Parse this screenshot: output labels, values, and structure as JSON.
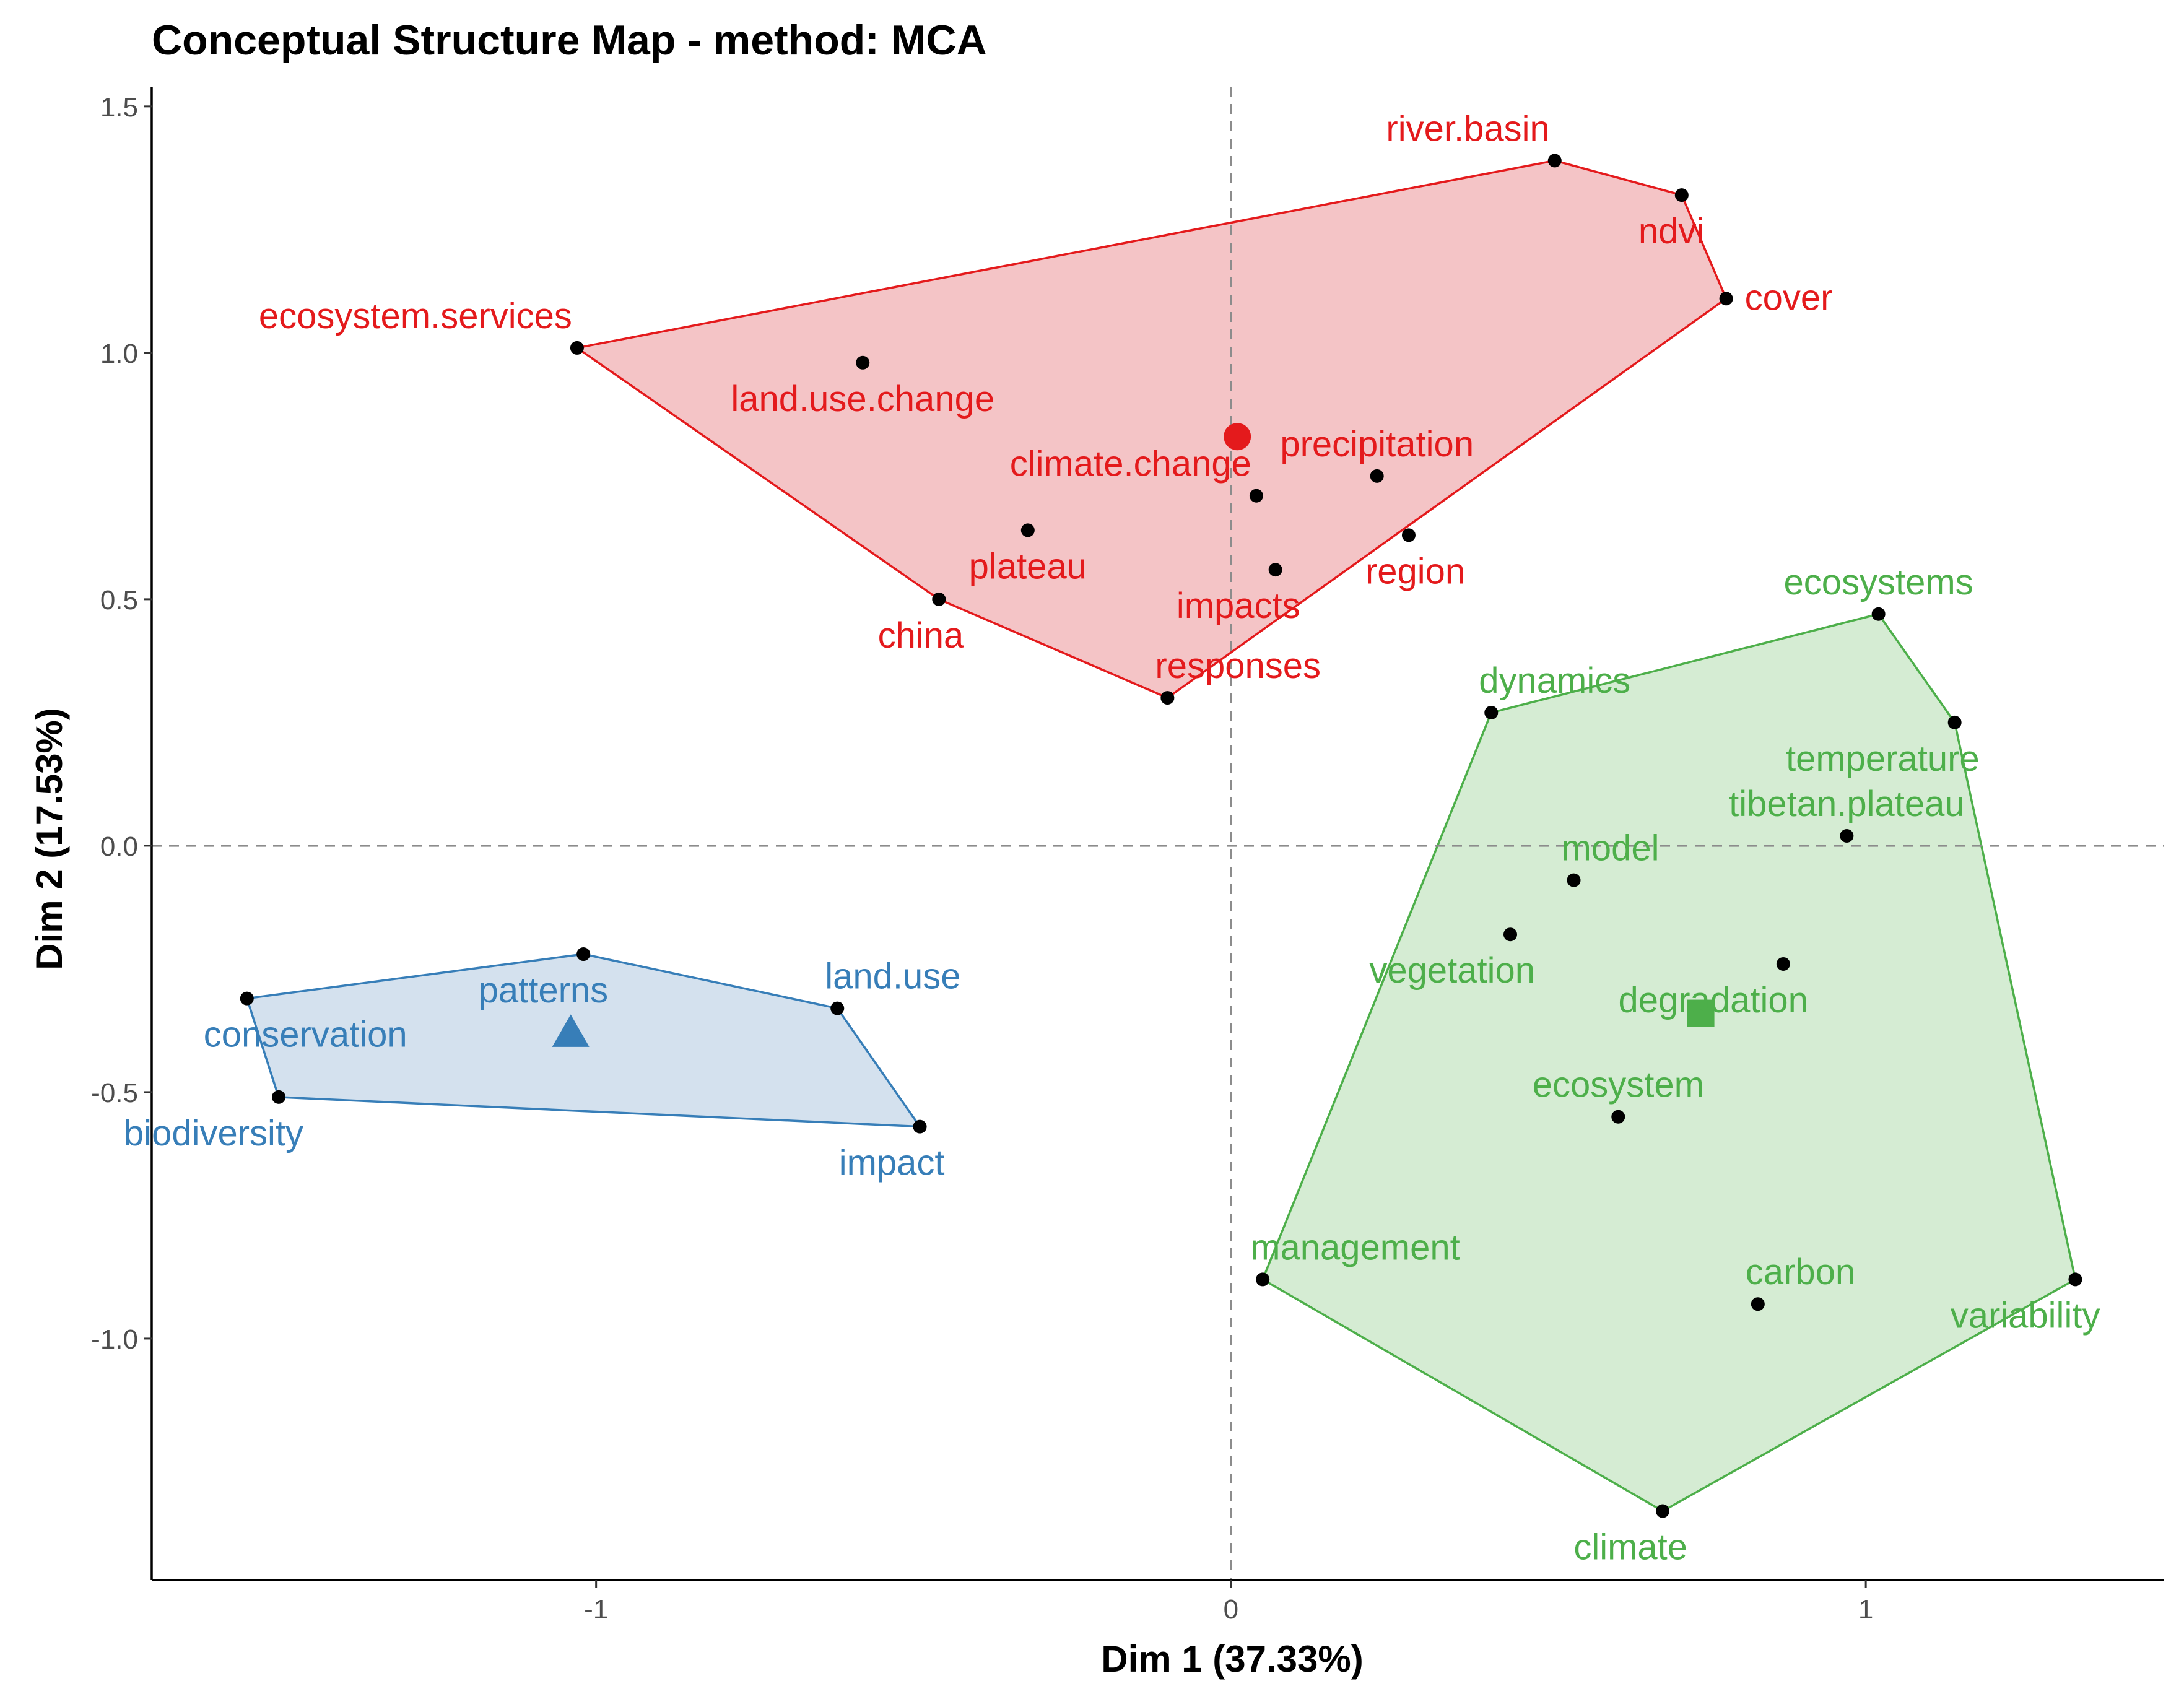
{
  "chart_data": {
    "type": "scatter",
    "title": "Conceptual Structure Map - method: MCA",
    "xlabel": "Dim 1 (37.33%)",
    "ylabel": "Dim 2 (17.53%)",
    "xlim": [
      -1.7,
      1.47
    ],
    "ylim": [
      -1.49,
      1.54
    ],
    "x_ticks": [
      {
        "value": -1,
        "label": "-1"
      },
      {
        "value": 0,
        "label": "0"
      },
      {
        "value": 1,
        "label": "1"
      }
    ],
    "y_ticks": [
      {
        "value": 1.5,
        "label": "1.5"
      },
      {
        "value": 1.0,
        "label": "1.0"
      },
      {
        "value": 0.5,
        "label": "0.5"
      },
      {
        "value": 0.0,
        "label": "0.0"
      },
      {
        "value": -0.5,
        "label": "-0.5"
      },
      {
        "value": -1.0,
        "label": "-1.0"
      }
    ],
    "reference_lines": {
      "x": 0,
      "y": 0,
      "style": "dashed"
    },
    "grid": false,
    "clusters": [
      {
        "name": "cluster-1",
        "color": "#e41a1c",
        "fill": "#f4c4c6",
        "centroid": {
          "x": 0.01,
          "y": 0.83,
          "marker": "circle"
        },
        "hull": [
          "river.basin",
          "ndvi",
          "cover",
          "responses",
          "china",
          "ecosystem.services"
        ],
        "points": [
          {
            "label": "ecosystem.services",
            "x": -1.03,
            "y": 1.01,
            "label_pos": "above-left"
          },
          {
            "label": "land.use.change",
            "x": -0.58,
            "y": 0.98,
            "label_pos": "below"
          },
          {
            "label": "climate.change",
            "x": 0.04,
            "y": 0.71,
            "label_pos": "above-left"
          },
          {
            "label": "precipitation",
            "x": 0.23,
            "y": 0.75,
            "label_pos": "above"
          },
          {
            "label": "plateau",
            "x": -0.32,
            "y": 0.64,
            "label_pos": "below"
          },
          {
            "label": "region",
            "x": 0.28,
            "y": 0.63,
            "label_pos": "below-right"
          },
          {
            "label": "impacts",
            "x": 0.07,
            "y": 0.56,
            "label_pos": "below-left"
          },
          {
            "label": "china",
            "x": -0.46,
            "y": 0.5,
            "label_pos": "below-left"
          },
          {
            "label": "responses",
            "x": -0.1,
            "y": 0.3,
            "label_pos": "above-right"
          },
          {
            "label": "river.basin",
            "x": 0.51,
            "y": 1.39,
            "label_pos": "above-left"
          },
          {
            "label": "ndvi",
            "x": 0.71,
            "y": 1.32,
            "label_pos": "below-right"
          },
          {
            "label": "cover",
            "x": 0.78,
            "y": 1.11,
            "label_pos": "right"
          }
        ]
      },
      {
        "name": "cluster-2",
        "color": "#4daf4a",
        "fill": "#d5ecd3",
        "centroid": {
          "x": 0.74,
          "y": -0.34,
          "marker": "square"
        },
        "hull": [
          "ecosystems",
          "temperature",
          "variability",
          "climate",
          "management",
          "dynamics"
        ],
        "points": [
          {
            "label": "ecosystems",
            "x": 1.02,
            "y": 0.47,
            "label_pos": "above"
          },
          {
            "label": "dynamics",
            "x": 0.41,
            "y": 0.27,
            "label_pos": "above-right"
          },
          {
            "label": "temperature",
            "x": 1.14,
            "y": 0.25,
            "label_pos": "below-left"
          },
          {
            "label": "tibetan.plateau",
            "x": 0.97,
            "y": 0.02,
            "label_pos": "above"
          },
          {
            "label": "model",
            "x": 0.54,
            "y": -0.07,
            "label_pos": "above-right"
          },
          {
            "label": "vegetation",
            "x": 0.44,
            "y": -0.18,
            "label_pos": "below-left"
          },
          {
            "label": "degradation",
            "x": 0.87,
            "y": -0.24,
            "label_pos": "below-left"
          },
          {
            "label": "ecosystem",
            "x": 0.61,
            "y": -0.55,
            "label_pos": "above"
          },
          {
            "label": "management",
            "x": 0.05,
            "y": -0.88,
            "label_pos": "above-right"
          },
          {
            "label": "carbon",
            "x": 0.83,
            "y": -0.93,
            "label_pos": "above-right"
          },
          {
            "label": "variability",
            "x": 1.33,
            "y": -0.88,
            "label_pos": "below-left"
          },
          {
            "label": "climate",
            "x": 0.68,
            "y": -1.35,
            "label_pos": "below-left"
          }
        ]
      },
      {
        "name": "cluster-3",
        "color": "#377eb8",
        "fill": "#d4e1ee",
        "centroid": {
          "x": -1.04,
          "y": -0.38,
          "marker": "triangle"
        },
        "hull": [
          "patterns",
          "land.use",
          "impact",
          "biodiversity",
          "conservation"
        ],
        "points": [
          {
            "label": "patterns",
            "x": -1.02,
            "y": -0.22,
            "label_pos": "below-left"
          },
          {
            "label": "land.use",
            "x": -0.62,
            "y": -0.33,
            "label_pos": "above-right"
          },
          {
            "label": "conservation",
            "x": -1.55,
            "y": -0.31,
            "label_pos": "below-right"
          },
          {
            "label": "biodiversity",
            "x": -1.5,
            "y": -0.51,
            "label_pos": "below-left"
          },
          {
            "label": "impact",
            "x": -0.49,
            "y": -0.57,
            "label_pos": "below-left"
          }
        ]
      }
    ]
  }
}
